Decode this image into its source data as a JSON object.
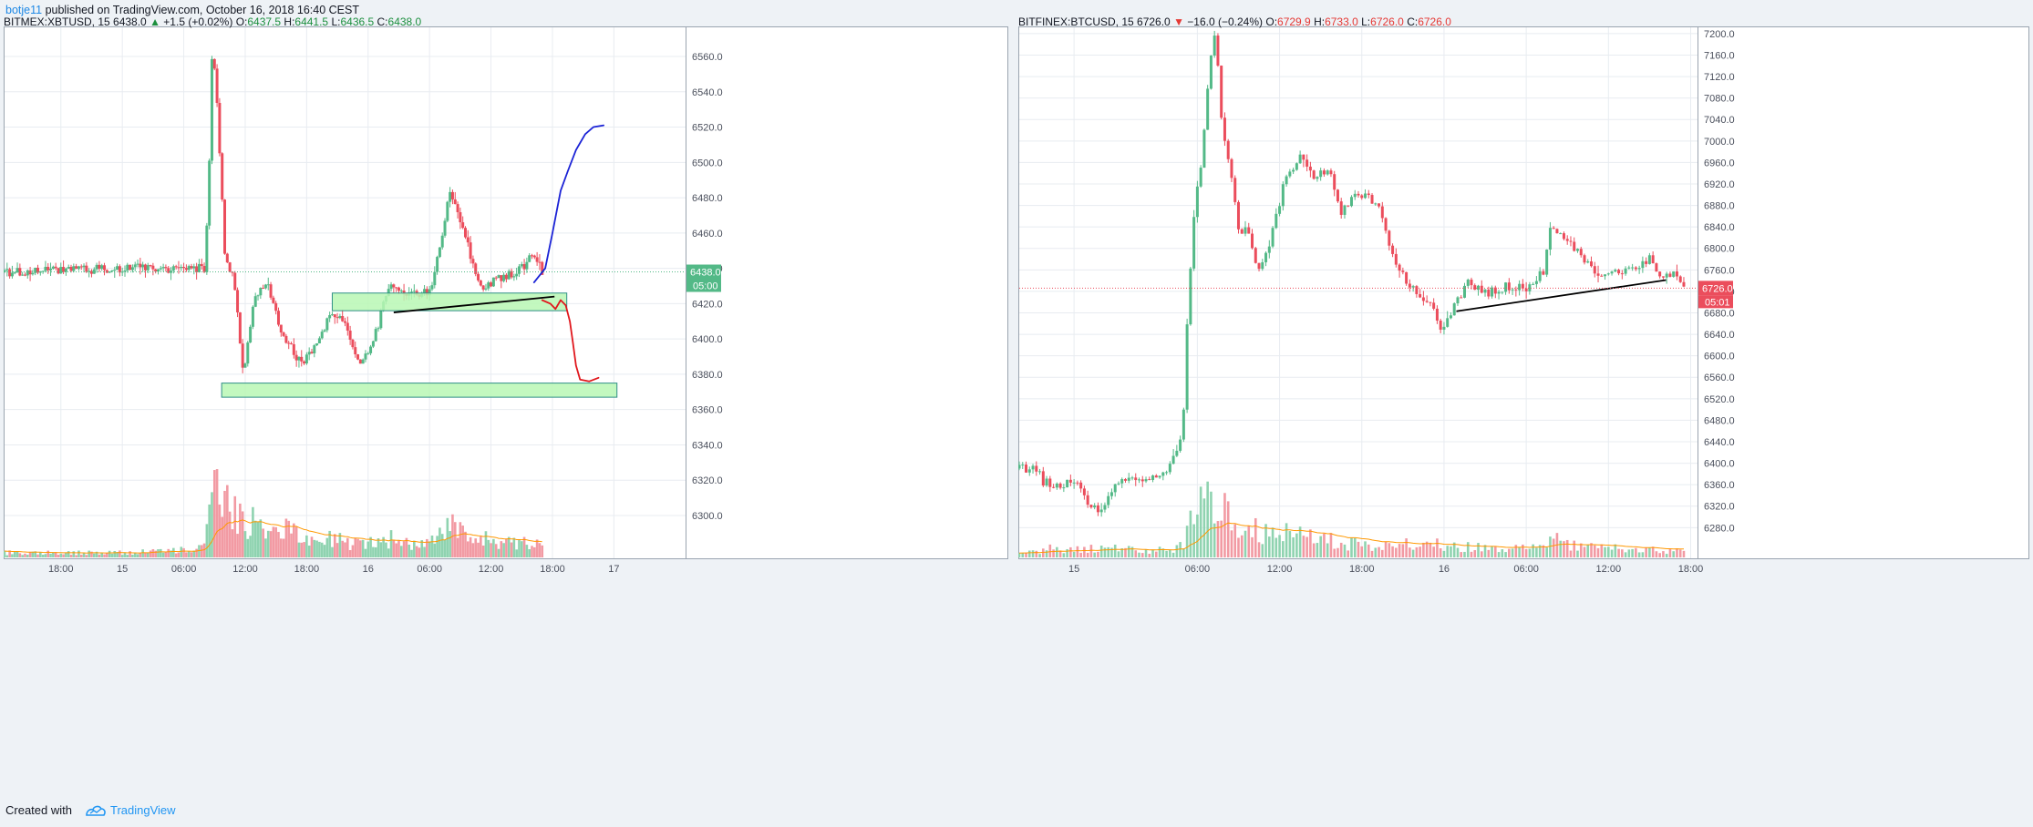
{
  "header": {
    "author": "botje11",
    "published_text": " published on TradingView.com, October 16, 2018 16:40 CEST"
  },
  "footer": {
    "created_with": "Created with",
    "brand": "TradingView",
    "logo_icon": "tradingview-logo-icon"
  },
  "colors": {
    "up": "#53b987",
    "down": "#eb4d5c",
    "zone_fill": "#b9f7b4",
    "zone_stroke": "#2f8f86",
    "ma": "#ff9800",
    "blue_path": "#1b23d6",
    "red_path": "#e0171d",
    "trendline": "#000000"
  },
  "chart_data": [
    {
      "type": "candlestick",
      "symbol_line": {
        "symbol": "BITMEX:XBTUSD, 15",
        "last": "6438.0",
        "arrow": "▲",
        "change": "+1.5 (+0.02%)",
        "change_dir": "up",
        "o": "6437.5",
        "h": "6441.5",
        "l": "6436.5",
        "c": "6438.0"
      },
      "ylim": [
        6284,
        6576
      ],
      "y_ticks": [
        6300,
        6320,
        6340,
        6360,
        6380,
        6400,
        6420,
        6440,
        6460,
        6480,
        6500,
        6520,
        6540,
        6560
      ],
      "y_tick_labels": [
        "6300.0",
        "6320.0",
        "6340.0",
        "6360.0",
        "6380.0",
        "6400.0",
        "6420.0",
        "6440.0",
        "6460.0",
        "6480.0",
        "6500.0",
        "6520.0",
        "6540.0",
        "6560.0"
      ],
      "x_ticks": [
        "18:00",
        "15",
        "06:00",
        "12:00",
        "18:00",
        "16",
        "06:00",
        "12:00",
        "18:00",
        "17"
      ],
      "x_tick_hours": [
        18,
        24,
        30,
        36,
        42,
        48,
        54,
        60,
        66,
        72
      ],
      "xlim_hours": [
        12.5,
        79
      ],
      "price_label": "6438.0",
      "price_value": 6438,
      "countdown": "05:00",
      "price_line_color": "#53b987",
      "series": [
        {
          "t": 12.5,
          "price": 6438,
          "vol": 0.05
        },
        {
          "t": 25,
          "price": 6440,
          "vol": 0.05
        },
        {
          "t": 32,
          "price": 6440,
          "vol": 0.1
        },
        {
          "t": 32.4,
          "price": 6480,
          "vol": 0.5
        },
        {
          "t": 32.8,
          "price": 6570,
          "vol": 0.9
        },
        {
          "t": 33.2,
          "price": 6540,
          "vol": 0.8
        },
        {
          "t": 34.0,
          "price": 6450,
          "vol": 0.6
        },
        {
          "t": 35.0,
          "price": 6430,
          "vol": 0.5
        },
        {
          "t": 35.8,
          "price": 6380,
          "vol": 0.4
        },
        {
          "t": 37.0,
          "price": 6425,
          "vol": 0.4
        },
        {
          "t": 38.3,
          "price": 6430,
          "vol": 0.35
        },
        {
          "t": 39.5,
          "price": 6405,
          "vol": 0.3
        },
        {
          "t": 41.5,
          "price": 6385,
          "vol": 0.25
        },
        {
          "t": 43.0,
          "price": 6398,
          "vol": 0.2
        },
        {
          "t": 44.5,
          "price": 6415,
          "vol": 0.2
        },
        {
          "t": 46.0,
          "price": 6406,
          "vol": 0.15
        },
        {
          "t": 47.2,
          "price": 6385,
          "vol": 0.15
        },
        {
          "t": 48.5,
          "price": 6398,
          "vol": 0.15
        },
        {
          "t": 50.0,
          "price": 6430,
          "vol": 0.2
        },
        {
          "t": 52.0,
          "price": 6424,
          "vol": 0.15
        },
        {
          "t": 54.2,
          "price": 6428,
          "vol": 0.15
        },
        {
          "t": 56.0,
          "price": 6483,
          "vol": 0.35
        },
        {
          "t": 57.5,
          "price": 6458,
          "vol": 0.25
        },
        {
          "t": 59.0,
          "price": 6428,
          "vol": 0.2
        },
        {
          "t": 61.0,
          "price": 6435,
          "vol": 0.15
        },
        {
          "t": 63.0,
          "price": 6440,
          "vol": 0.15
        },
        {
          "t": 64.2,
          "price": 6448,
          "vol": 0.15
        },
        {
          "t": 65.0,
          "price": 6438,
          "vol": 0.1
        }
      ],
      "green_volume_spike_frac": [
        0.42,
        0.78,
        0.55
      ],
      "zones": [
        {
          "t0": 44.5,
          "t1": 67.4,
          "p0": 6416,
          "p1": 6426
        },
        {
          "t0": 33.7,
          "t1": 72.3,
          "p0": 6367,
          "p1": 6375
        }
      ],
      "trendlines": [
        {
          "t0": 50.5,
          "p0": 6415,
          "t1": 66.2,
          "p1": 6424
        }
      ],
      "hand_paths": [
        {
          "color": "blue_path",
          "points": [
            [
              64.2,
              6432
            ],
            [
              65.3,
              6440
            ],
            [
              66.0,
              6460
            ],
            [
              66.8,
              6484
            ],
            [
              67.5,
              6495
            ],
            [
              68.3,
              6507
            ],
            [
              69.2,
              6516
            ],
            [
              70.0,
              6520
            ],
            [
              71.0,
              6521
            ]
          ]
        },
        {
          "color": "red_path",
          "points": [
            [
              65.0,
              6422
            ],
            [
              65.8,
              6420
            ],
            [
              66.3,
              6417
            ],
            [
              66.8,
              6422
            ],
            [
              67.3,
              6419
            ],
            [
              67.7,
              6410
            ],
            [
              68.0,
              6398
            ],
            [
              68.3,
              6385
            ],
            [
              68.7,
              6377
            ],
            [
              69.6,
              6376
            ],
            [
              70.5,
              6378
            ]
          ]
        }
      ]
    },
    {
      "type": "candlestick",
      "symbol_line": {
        "symbol": "BITFINEX:BTCUSD, 15",
        "last": "6726.0",
        "arrow": "▼",
        "change": "−16.0 (−0.24%)",
        "change_dir": "down",
        "o": "6729.9",
        "h": "6733.0",
        "l": "6726.0",
        "c": "6726.0"
      },
      "ylim": [
        6250,
        7210
      ],
      "y_ticks": [
        6280,
        6320,
        6360,
        6400,
        6440,
        6480,
        6520,
        6560,
        6600,
        6640,
        6680,
        6720,
        6760,
        6800,
        6840,
        6880,
        6920,
        6960,
        7000,
        7040,
        7080,
        7120,
        7160,
        7200
      ],
      "y_tick_labels": [
        "6280.0",
        "6320.0",
        "6360.0",
        "6400.0",
        "6440.0",
        "6480.0",
        "6520.0",
        "6560.0",
        "6600.0",
        "6640.0",
        "6680.0",
        "6720.0",
        "6760.0",
        "6800.0",
        "6840.0",
        "6880.0",
        "6920.0",
        "6960.0",
        "7000.0",
        "7040.0",
        "7080.0",
        "7120.0",
        "7160.0",
        "7200.0"
      ],
      "x_ticks": [
        "15",
        "06:00",
        "12:00",
        "18:00",
        "16",
        "06:00",
        "12:00",
        "18:00"
      ],
      "x_tick_hours": [
        24,
        33,
        39,
        45,
        51,
        57,
        63,
        69
      ],
      "xlim_hours": [
        20,
        69.5
      ],
      "price_label": "6726.0",
      "price_value": 6726,
      "countdown": "05:01",
      "price_line_color": "#eb4d5c",
      "series": [
        {
          "t": 20.0,
          "price": 6390,
          "vol": 0.05
        },
        {
          "t": 21.3,
          "price": 6393,
          "vol": 0.05
        },
        {
          "t": 21.7,
          "price": 6365,
          "vol": 0.1
        },
        {
          "t": 23.0,
          "price": 6360,
          "vol": 0.08
        },
        {
          "t": 24.2,
          "price": 6368,
          "vol": 0.08
        },
        {
          "t": 25.2,
          "price": 6320,
          "vol": 0.1
        },
        {
          "t": 25.8,
          "price": 6308,
          "vol": 0.1
        },
        {
          "t": 26.6,
          "price": 6348,
          "vol": 0.1
        },
        {
          "t": 27.8,
          "price": 6375,
          "vol": 0.1
        },
        {
          "t": 29.5,
          "price": 6375,
          "vol": 0.08
        },
        {
          "t": 30.8,
          "price": 6390,
          "vol": 0.08
        },
        {
          "t": 31.6,
          "price": 6420,
          "vol": 0.1
        },
        {
          "t": 32.0,
          "price": 6500,
          "vol": 0.2
        },
        {
          "t": 32.3,
          "price": 6680,
          "vol": 0.35
        },
        {
          "t": 32.8,
          "price": 6880,
          "vol": 0.5
        },
        {
          "t": 33.3,
          "price": 6950,
          "vol": 0.55
        },
        {
          "t": 33.9,
          "price": 7150,
          "vol": 0.7
        },
        {
          "t": 34.3,
          "price": 7200,
          "vol": 0.6
        },
        {
          "t": 34.9,
          "price": 7000,
          "vol": 0.5
        },
        {
          "t": 35.4,
          "price": 6960,
          "vol": 0.35
        },
        {
          "t": 36.0,
          "price": 6830,
          "vol": 0.3
        },
        {
          "t": 36.6,
          "price": 6840,
          "vol": 0.3
        },
        {
          "t": 37.4,
          "price": 6760,
          "vol": 0.28
        },
        {
          "t": 38.4,
          "price": 6820,
          "vol": 0.25
        },
        {
          "t": 39.5,
          "price": 6940,
          "vol": 0.25
        },
        {
          "t": 40.6,
          "price": 6970,
          "vol": 0.22
        },
        {
          "t": 41.5,
          "price": 6930,
          "vol": 0.2
        },
        {
          "t": 42.5,
          "price": 6950,
          "vol": 0.18
        },
        {
          "t": 43.5,
          "price": 6870,
          "vol": 0.15
        },
        {
          "t": 44.5,
          "price": 6900,
          "vol": 0.15
        },
        {
          "t": 45.5,
          "price": 6900,
          "vol": 0.12
        },
        {
          "t": 46.5,
          "price": 6860,
          "vol": 0.12
        },
        {
          "t": 47.3,
          "price": 6780,
          "vol": 0.12
        },
        {
          "t": 48.3,
          "price": 6740,
          "vol": 0.15
        },
        {
          "t": 49.3,
          "price": 6705,
          "vol": 0.12
        },
        {
          "t": 50.1,
          "price": 6700,
          "vol": 0.12
        },
        {
          "t": 50.7,
          "price": 6650,
          "vol": 0.15
        },
        {
          "t": 51.5,
          "price": 6680,
          "vol": 0.12
        },
        {
          "t": 52.7,
          "price": 6735,
          "vol": 0.12
        },
        {
          "t": 54.0,
          "price": 6715,
          "vol": 0.1
        },
        {
          "t": 55.5,
          "price": 6730,
          "vol": 0.1
        },
        {
          "t": 57.0,
          "price": 6725,
          "vol": 0.1
        },
        {
          "t": 58.3,
          "price": 6760,
          "vol": 0.12
        },
        {
          "t": 58.8,
          "price": 6850,
          "vol": 0.2
        },
        {
          "t": 60.0,
          "price": 6810,
          "vol": 0.15
        },
        {
          "t": 61.0,
          "price": 6790,
          "vol": 0.12
        },
        {
          "t": 62.0,
          "price": 6750,
          "vol": 0.1
        },
        {
          "t": 63.5,
          "price": 6755,
          "vol": 0.1
        },
        {
          "t": 65.0,
          "price": 6760,
          "vol": 0.08
        },
        {
          "t": 66.0,
          "price": 6780,
          "vol": 0.08
        },
        {
          "t": 66.8,
          "price": 6748,
          "vol": 0.08
        },
        {
          "t": 67.8,
          "price": 6755,
          "vol": 0.08
        },
        {
          "t": 68.5,
          "price": 6726,
          "vol": 0.08
        }
      ],
      "zones": [],
      "trendlines": [
        {
          "t0": 51.9,
          "p0": 6683,
          "t1": 67.2,
          "p1": 6741
        }
      ],
      "hand_paths": []
    }
  ]
}
